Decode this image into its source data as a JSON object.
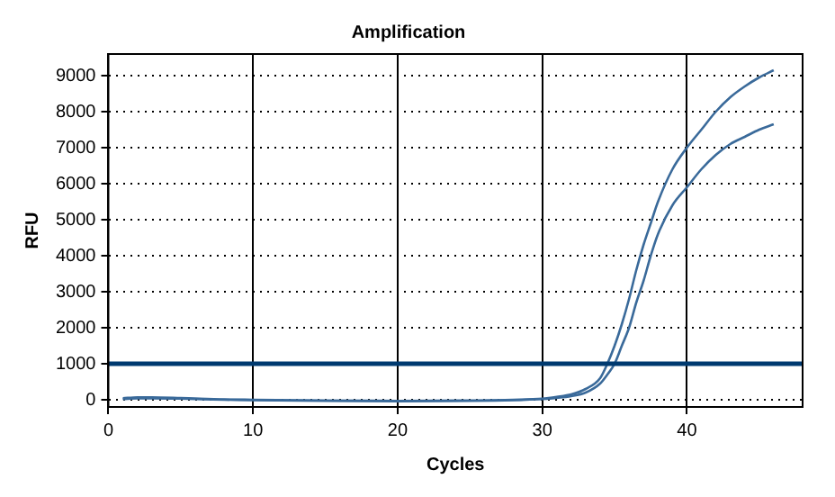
{
  "chart_data": {
    "type": "line",
    "title": "Amplification",
    "xlabel": "Cycles",
    "ylabel": "RFU",
    "xlim": [
      0,
      48
    ],
    "xticks": [
      0,
      10,
      20,
      30,
      40
    ],
    "ylim": [
      -200,
      9600
    ],
    "yticks": [
      0,
      1000,
      2000,
      3000,
      4000,
      5000,
      6000,
      7000,
      8000,
      9000
    ],
    "grid": true,
    "line_style": "solid",
    "marker": "none",
    "series": [
      {
        "color": "#3a6a9a",
        "x": [
          1,
          2,
          3,
          5,
          8,
          10,
          15,
          20,
          25,
          28,
          30,
          31,
          32,
          33,
          34,
          34.5,
          35,
          35.5,
          36,
          36.5,
          37,
          37.5,
          38,
          39,
          40,
          41,
          42,
          43,
          44,
          45,
          46
        ],
        "values": [
          40,
          70,
          70,
          50,
          10,
          0,
          -20,
          -30,
          -20,
          0,
          30,
          80,
          150,
          300,
          600,
          1000,
          1500,
          2100,
          2800,
          3600,
          4300,
          4900,
          5500,
          6400,
          7000,
          7500,
          8000,
          8400,
          8700,
          8950,
          9150
        ]
      },
      {
        "color": "#3a6a9a",
        "x": [
          1,
          2,
          3,
          5,
          8,
          10,
          15,
          20,
          25,
          28,
          30,
          31,
          32,
          33,
          34,
          34.5,
          35,
          35.5,
          36,
          36.5,
          37,
          37.5,
          38,
          39,
          40,
          41,
          42,
          43,
          44,
          45,
          46
        ],
        "values": [
          20,
          40,
          40,
          30,
          0,
          -10,
          -30,
          -40,
          -30,
          -10,
          20,
          50,
          100,
          200,
          450,
          700,
          1000,
          1500,
          2000,
          2700,
          3300,
          4000,
          4600,
          5400,
          5900,
          6400,
          6800,
          7100,
          7300,
          7500,
          7650
        ]
      }
    ],
    "ref_lines": [
      {
        "axis": "y",
        "value": 1000,
        "color": "#003a70"
      }
    ]
  }
}
